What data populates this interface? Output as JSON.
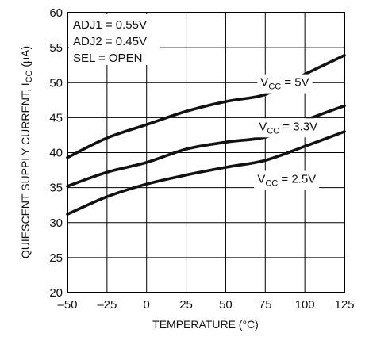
{
  "chart_data": {
    "type": "line",
    "title": "",
    "xlabel": "TEMPERATURE (°C)",
    "ylabel_main": "QUIESCENT SUPPLY CURRENT, I",
    "ylabel_sub": "CC",
    "ylabel_unit": " (μA)",
    "xlim": [
      -50,
      125
    ],
    "ylim": [
      20,
      60
    ],
    "x_ticks": [
      -50,
      -25,
      0,
      25,
      50,
      75,
      100,
      125
    ],
    "x_tick_labels": [
      "–50",
      "–25",
      "0",
      "25",
      "50",
      "75",
      "100",
      "125"
    ],
    "y_ticks": [
      20,
      25,
      30,
      35,
      40,
      45,
      50,
      55,
      60
    ],
    "y_tick_labels": [
      "20",
      "25",
      "30",
      "35",
      "40",
      "45",
      "50",
      "55",
      "60"
    ],
    "grid": true,
    "conditions": [
      "ADJ1 = 0.55V",
      "ADJ2 = 0.45V",
      "SEL = OPEN"
    ],
    "series": [
      {
        "label_main": "V",
        "label_sub": "CC",
        "label_rest": " = 5V",
        "label_at": [
          72,
          49.5
        ],
        "x": [
          -50,
          -25,
          0,
          25,
          50,
          70,
          80,
          100,
          125
        ],
        "values": [
          39.3,
          42.1,
          44.0,
          45.9,
          47.3,
          48.0,
          48.8,
          51.2,
          53.9
        ]
      },
      {
        "label_main": "V",
        "label_sub": "CC",
        "label_rest": " = 3.3V",
        "label_at": [
          71,
          43.2
        ],
        "x": [
          -50,
          -25,
          0,
          25,
          50,
          70,
          80,
          100,
          125
        ],
        "values": [
          35.2,
          37.2,
          38.6,
          40.5,
          41.5,
          42.0,
          42.6,
          44.6,
          46.7
        ]
      },
      {
        "label_main": "V",
        "label_sub": "CC",
        "label_rest": " = 2.5V",
        "label_at": [
          70,
          35.7
        ],
        "x": [
          -50,
          -25,
          0,
          25,
          50,
          75,
          100,
          125
        ],
        "values": [
          31.2,
          33.7,
          35.5,
          36.8,
          37.9,
          38.9,
          40.9,
          43.0
        ]
      }
    ]
  }
}
